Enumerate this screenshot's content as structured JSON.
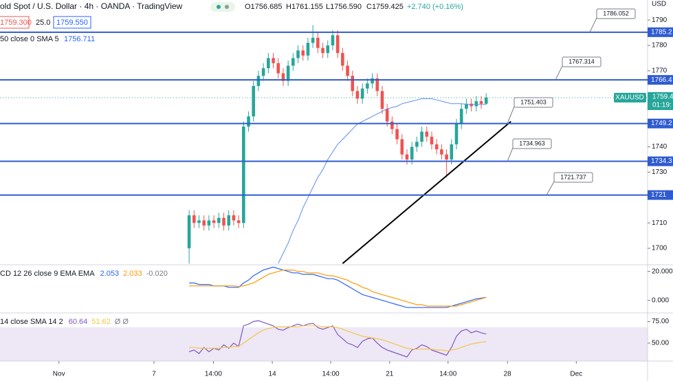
{
  "header": {
    "symbol": "old Spot / U.S. Dollar · 4h · OANDA · TradingView",
    "open": "O1756.685",
    "high": "H1761.155",
    "low": "L1756.590",
    "close": "C1759.425",
    "change": "+2.740 (+0.16%)",
    "bid": "1759.300",
    "spread": "25.0",
    "ask": "1759.550",
    "sma_label": "50 close 0 SMA 5",
    "sma_value": "1756.711",
    "currency": "USD"
  },
  "chart_data": [
    {
      "type": "candlestick",
      "xlim": [
        -38.2,
        92.6
      ],
      "ylim": [
        1693.5,
        1797.9
      ],
      "yticks": [
        1700,
        1710,
        1730,
        1740,
        1770,
        1780,
        1790
      ],
      "xticks": [
        {
          "value": -26.3,
          "label": "Nov"
        },
        {
          "value": -7.1,
          "label": "7"
        },
        {
          "value": 4.9,
          "label": "14:00"
        },
        {
          "value": 16.8,
          "label": "14"
        },
        {
          "value": 28.6,
          "label": "14:00"
        },
        {
          "value": 40.5,
          "label": "21"
        },
        {
          "value": 52.3,
          "label": "14:00"
        },
        {
          "value": 64.3,
          "label": "28"
        },
        {
          "value": 78.2,
          "label": "Dec"
        }
      ],
      "up_color": "#26a69a",
      "down_color": "#ef5350",
      "open": [
        1700,
        1713,
        1710,
        1711,
        1709,
        1711,
        1710,
        1712,
        1709,
        1713,
        1711,
        1710,
        1748,
        1752,
        1764,
        1768,
        1771,
        1775,
        1773,
        1769,
        1766,
        1772,
        1775,
        1778,
        1776,
        1781,
        1783,
        1779,
        1777,
        1780,
        1784,
        1777,
        1772,
        1768,
        1762,
        1759,
        1763,
        1765,
        1767,
        1762,
        1755,
        1750,
        1747,
        1743,
        1737,
        1735,
        1740,
        1742,
        1746,
        1744,
        1741,
        1739,
        1737,
        1735,
        1741,
        1749,
        1755,
        1757,
        1756,
        1758,
        1757
      ],
      "high": [
        1715,
        1715,
        1713,
        1713,
        1713,
        1713,
        1714,
        1714,
        1715,
        1715,
        1713,
        1750,
        1754,
        1766,
        1770,
        1773,
        1777,
        1777,
        1775,
        1771,
        1774,
        1777,
        1780,
        1780,
        1783,
        1788,
        1785,
        1781,
        1782,
        1786,
        1786,
        1779,
        1774,
        1770,
        1764,
        1765,
        1767,
        1769,
        1769,
        1764,
        1757,
        1752,
        1749,
        1745,
        1739,
        1742,
        1744,
        1748,
        1748,
        1746,
        1743,
        1741,
        1739,
        1743,
        1751,
        1757,
        1759,
        1759,
        1760,
        1760,
        1761.155
      ],
      "low": [
        1694,
        1708,
        1708,
        1707,
        1707,
        1708,
        1708,
        1707,
        1707,
        1709,
        1708,
        1708,
        1746,
        1750,
        1762,
        1766,
        1769,
        1771,
        1767,
        1764,
        1764,
        1770,
        1773,
        1774,
        1774,
        1779,
        1777,
        1775,
        1775,
        1778,
        1775,
        1770,
        1766,
        1760,
        1757,
        1757,
        1761,
        1763,
        1760,
        1753,
        1748,
        1745,
        1741,
        1735,
        1733,
        1733,
        1738,
        1740,
        1742,
        1739,
        1737,
        1735,
        1728,
        1733,
        1739,
        1747,
        1753,
        1754,
        1754,
        1755,
        1756.59
      ],
      "close": [
        1713,
        1710,
        1711,
        1709,
        1711,
        1710,
        1712,
        1709,
        1713,
        1711,
        1710,
        1748,
        1752,
        1764,
        1768,
        1771,
        1775,
        1773,
        1769,
        1766,
        1772,
        1775,
        1778,
        1776,
        1781,
        1783,
        1779,
        1777,
        1780,
        1784,
        1777,
        1772,
        1768,
        1762,
        1759,
        1763,
        1765,
        1767,
        1762,
        1755,
        1750,
        1747,
        1743,
        1737,
        1735,
        1740,
        1742,
        1746,
        1744,
        1741,
        1739,
        1737,
        1735,
        1741,
        1749,
        1755,
        1757,
        1756,
        1758,
        1757,
        1759.425
      ],
      "sma": {
        "color": "#5b8def",
        "values": [
          null,
          null,
          null,
          null,
          null,
          null,
          null,
          null,
          null,
          null,
          null,
          null,
          null,
          null,
          null,
          null,
          null,
          null,
          1694,
          1698,
          1702,
          1707,
          1711,
          1716,
          1720,
          1724,
          1728,
          1731,
          1735,
          1738,
          1741,
          1743,
          1745,
          1747,
          1749,
          1750,
          1751,
          1752,
          1753,
          1754,
          1755,
          1755.5,
          1756,
          1757,
          1757.5,
          1758,
          1758.5,
          1759,
          1759,
          1759,
          1758.5,
          1758,
          1757.5,
          1757,
          1757,
          1757,
          1756.8,
          1756.7,
          1756.7,
          1756.7,
          1756.711
        ]
      },
      "levels": {
        "color": "#2f5bd0",
        "values": [
          1785.2,
          1766.4,
          1749.2,
          1734.3,
          1721.0
        ],
        "annotations": [
          "1786.052",
          "1767.314",
          "1751.403",
          "1734.963",
          "1721.737"
        ]
      },
      "trendline": {
        "x": [
          31,
          65
        ],
        "y": [
          1694,
          1750
        ]
      },
      "last_price": 1759.4,
      "last_symbol": "XAUUSD",
      "countdown": "01:19:"
    },
    {
      "type": "line",
      "title": "CD 12 26 close 9 EMA EMA",
      "readout": [
        "2.053",
        "2.033",
        "-0.020"
      ],
      "xlim": [
        -38.2,
        92.6
      ],
      "ylim": [
        -8.7,
        24.6
      ],
      "yticks": [
        {
          "value": 20,
          "label": "20.000"
        },
        {
          "value": 0,
          "label": "0.000"
        }
      ],
      "series": [
        {
          "color": "#2962ff",
          "values": [
            12,
            12,
            11,
            11,
            11,
            10,
            10,
            10,
            9,
            9,
            9,
            12,
            14,
            17,
            19,
            21,
            22,
            23,
            22,
            21,
            20,
            19,
            19,
            18,
            18,
            18,
            17,
            16,
            15,
            15,
            14,
            12,
            10,
            8,
            6,
            4,
            3,
            2,
            1,
            0,
            -1,
            -2,
            -3,
            -4,
            -5,
            -5,
            -5,
            -5,
            -5,
            -5,
            -5,
            -5,
            -5,
            -4,
            -3,
            -2,
            -1,
            0,
            1,
            1.5,
            2.053
          ]
        },
        {
          "color": "#ff9800",
          "values": [
            10,
            10,
            10,
            10,
            10,
            10,
            10,
            10,
            10,
            10,
            9.5,
            10,
            11,
            12,
            14,
            16,
            18,
            19,
            20,
            21,
            21,
            21,
            20,
            20,
            19,
            19,
            19,
            18,
            17,
            17,
            16,
            15,
            14,
            12,
            11,
            9,
            8,
            6,
            5,
            4,
            3,
            2,
            1,
            0,
            -1,
            -2,
            -3,
            -3,
            -4,
            -4,
            -4,
            -4,
            -4,
            -4,
            -4,
            -3,
            -2,
            -1,
            0,
            1,
            2.033
          ]
        }
      ]
    },
    {
      "type": "line",
      "title": "14 close SMA 14 2",
      "readout": [
        "60.64",
        "51.62",
        "Ø Ø"
      ],
      "xlim": [
        -38.2,
        92.6
      ],
      "ylim": [
        29.2,
        85
      ],
      "yticks": [
        {
          "value": 75,
          "label": "75.00"
        },
        {
          "value": 50,
          "label": "50.00"
        }
      ],
      "series": [
        {
          "color": "#7e57c2",
          "values": [
            40,
            42,
            38,
            45,
            40,
            44,
            42,
            48,
            44,
            50,
            46,
            70,
            72,
            75,
            76,
            74,
            72,
            70,
            66,
            65,
            68,
            70,
            72,
            70,
            72,
            73,
            68,
            66,
            68,
            70,
            60,
            55,
            50,
            48,
            45,
            52,
            55,
            56,
            50,
            45,
            42,
            40,
            38,
            36,
            34,
            42,
            44,
            48,
            46,
            42,
            40,
            38,
            36,
            45,
            58,
            64,
            66,
            62,
            64,
            62,
            60.64
          ]
        },
        {
          "color": "#f5c542",
          "values": [
            45,
            45,
            44,
            44,
            44,
            44,
            44,
            45,
            45,
            46,
            46,
            50,
            54,
            58,
            62,
            65,
            67,
            68,
            69,
            69,
            69,
            69,
            69,
            70,
            70,
            70,
            70,
            69,
            69,
            69,
            68,
            66,
            64,
            62,
            60,
            58,
            57,
            56,
            55,
            54,
            52,
            50,
            48,
            46,
            44,
            43,
            43,
            43,
            43,
            43,
            42,
            42,
            41,
            42,
            43,
            45,
            47,
            49,
            50,
            51,
            51.62
          ]
        }
      ]
    }
  ]
}
